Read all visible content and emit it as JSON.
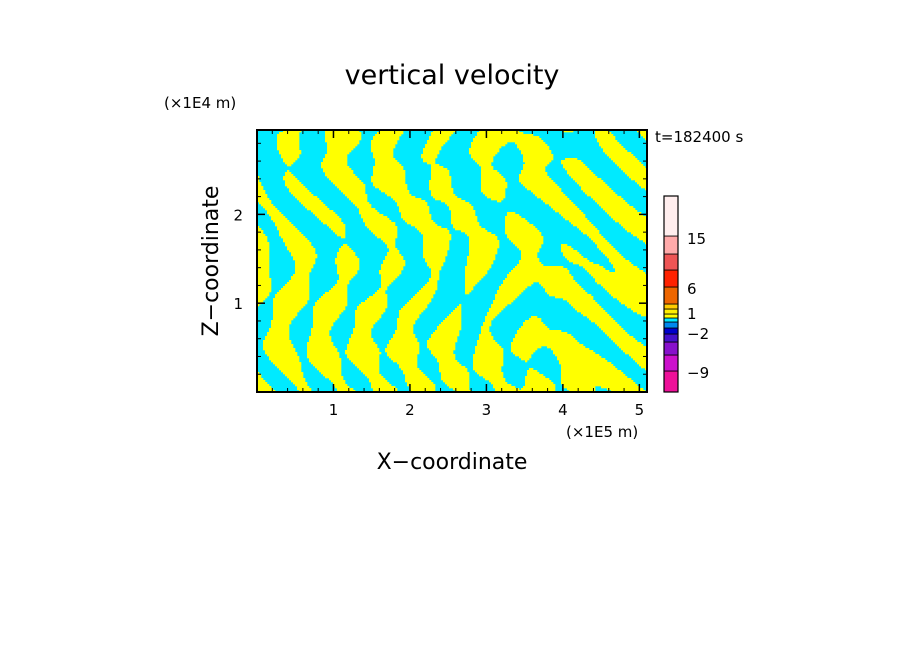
{
  "chart_data": {
    "type": "heatmap",
    "title": "vertical velocity",
    "xlabel": "X−coordinate",
    "ylabel": "Z−coordinate",
    "x_unit": "(×1E5 m)",
    "y_unit": "(×1E4 m)",
    "time_label": "t=182400 s",
    "xlim": [
      0,
      5.1
    ],
    "ylim": [
      0,
      2.95
    ],
    "x_ticks": [
      {
        "value": 1,
        "label": "1"
      },
      {
        "value": 2,
        "label": "2"
      },
      {
        "value": 3,
        "label": "3"
      },
      {
        "value": 4,
        "label": "4"
      },
      {
        "value": 5,
        "label": "5"
      }
    ],
    "y_ticks": [
      {
        "value": 1,
        "label": "1"
      },
      {
        "value": 2,
        "label": "2"
      }
    ],
    "field_colors": {
      "negative": "#00eaff",
      "positive": "#ffff00"
    },
    "colorbar": {
      "levels": [
        {
          "color": "#ee1199"
        },
        {
          "color": "#cc11cc"
        },
        {
          "color": "#8811cc"
        },
        {
          "color": "#4411cc"
        },
        {
          "color": "#0000cc"
        },
        {
          "color": "#0088ee"
        },
        {
          "color": "#00eaff"
        },
        {
          "color": "#ffff00"
        },
        {
          "color": "#ffee00"
        },
        {
          "color": "#ffcc00"
        },
        {
          "color": "#ee6600"
        },
        {
          "color": "#ff2200"
        },
        {
          "color": "#ee5555"
        },
        {
          "color": "#ffaaaa"
        },
        {
          "color": "#ffeeee"
        }
      ],
      "labels": [
        "15",
        "6",
        "1",
        "−2",
        "−9"
      ]
    }
  }
}
